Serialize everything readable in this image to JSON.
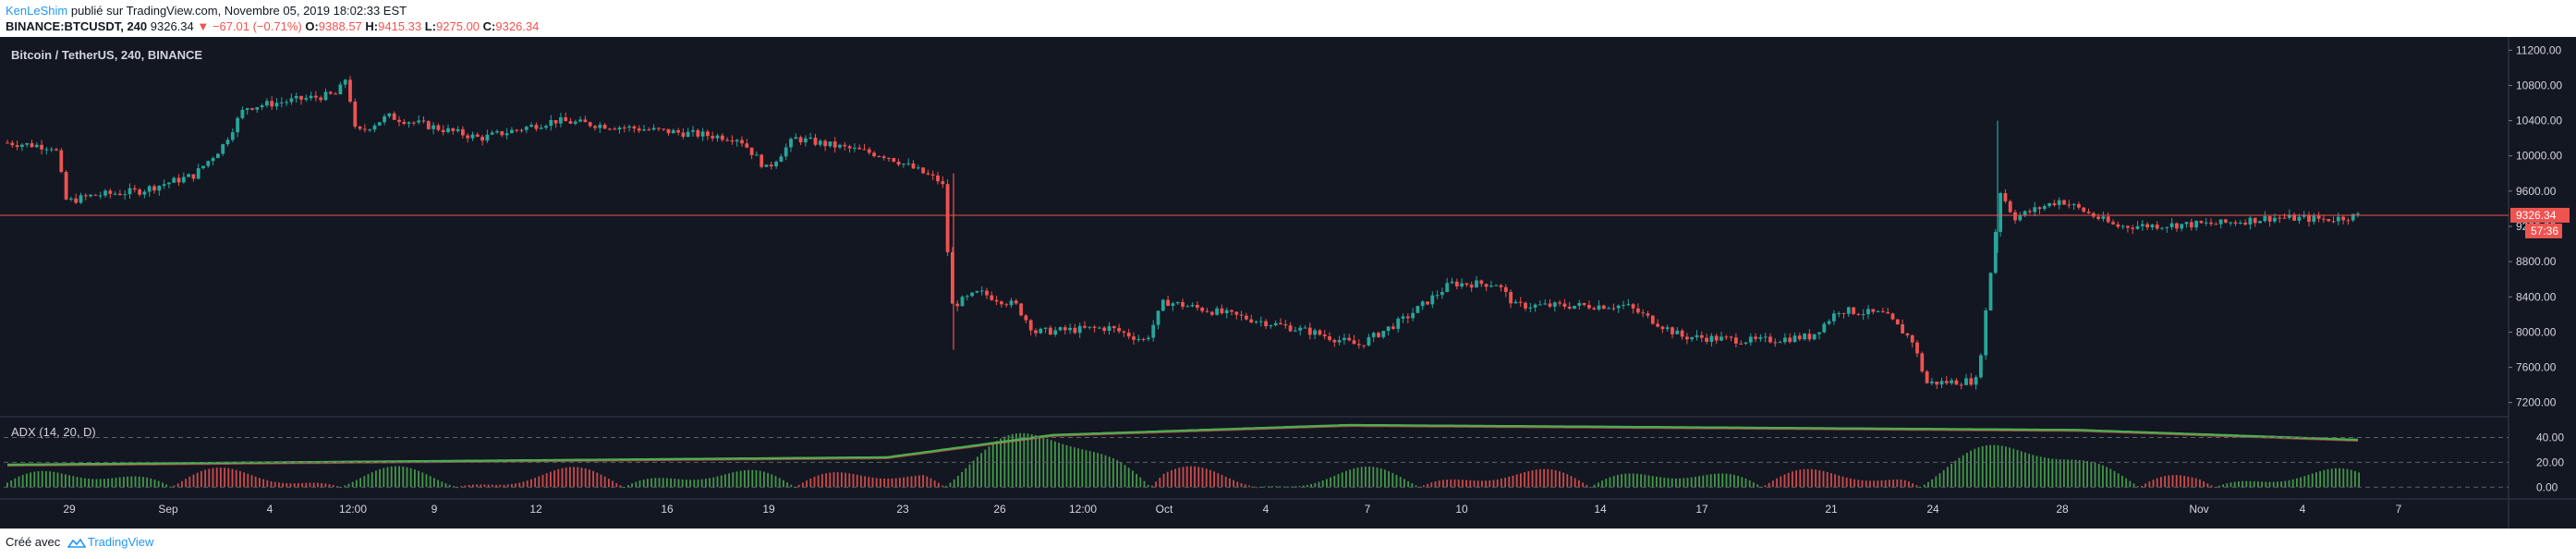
{
  "header": {
    "author": "KenLeShim",
    "published_text": "publié sur TradingView.com, Novembre 05, 2019 18:02:33 EST",
    "symbol_line": {
      "symbol": "BINANCE:BTCUSDT, 240",
      "last": "9326.34",
      "change": "▼ −67.01 (−0.71%)",
      "open_label": "O:",
      "open": "9388.57",
      "high_label": "H:",
      "high": "9415.33",
      "low_label": "L:",
      "low": "9275.00",
      "close_label": "C:",
      "close": "9326.34"
    }
  },
  "main_pane": {
    "title": "Bitcoin / TetherUS, 240, BINANCE",
    "price_ticks": [
      "11200.00",
      "10800.00",
      "10400.00",
      "10000.00",
      "9600.00",
      "9200.00",
      "8800.00",
      "8400.00",
      "8000.00",
      "7600.00",
      "7200.00"
    ],
    "last_price_badge": "9326.34",
    "countdown_badge": "57:36"
  },
  "adx_pane": {
    "title": "ADX (14, 20, D)",
    "ticks": [
      "40.00",
      "20.00",
      "0.00"
    ]
  },
  "time_axis": [
    "29",
    "Sep",
    "4",
    "12:00",
    "9",
    "12",
    "16",
    "19",
    "23",
    "26",
    "12:00",
    "Oct",
    "4",
    "7",
    "10",
    "14",
    "17",
    "21",
    "24",
    "28",
    "Nov",
    "4",
    "7"
  ],
  "footer": {
    "created_with": "Créé avec",
    "brand": "TradingView"
  },
  "colors": {
    "background": "#131722",
    "up": "#26a69a",
    "down": "#ef5350",
    "adx_line": "#4caf50",
    "hist_up": "#4caf50",
    "hist_down": "#ef5350"
  },
  "chart_data": {
    "type": "candlestick",
    "title": "Bitcoin / TetherUS, 240, BINANCE",
    "ylim": [
      7050,
      11350
    ],
    "last_price": 9326.34,
    "anchors": [
      [
        "29",
        10150
      ],
      [
        "Sep",
        9580
      ],
      [
        "4",
        10650
      ],
      [
        "12:00",
        10750
      ],
      [
        "9",
        10350
      ],
      [
        "12",
        10300
      ],
      [
        "16",
        10250
      ],
      [
        "19",
        10150
      ],
      [
        "23",
        9900
      ],
      [
        "26",
        8200
      ],
      [
        "12:00",
        8050
      ],
      [
        "Oct",
        8250
      ],
      [
        "4",
        8150
      ],
      [
        "7",
        8000
      ],
      [
        "10",
        8600
      ],
      [
        "14",
        8300
      ],
      [
        "17",
        7950
      ],
      [
        "21",
        8200
      ],
      [
        "24",
        7450
      ],
      [
        "28",
        9350
      ],
      [
        "Nov",
        9200
      ],
      [
        "4",
        9200
      ],
      [
        "now",
        9326.34
      ]
    ],
    "adx": {
      "ylim": [
        -8,
        56
      ],
      "levels": [
        40,
        20,
        0
      ],
      "start_value": 18,
      "peak_value": 50,
      "end_value": 38
    }
  }
}
